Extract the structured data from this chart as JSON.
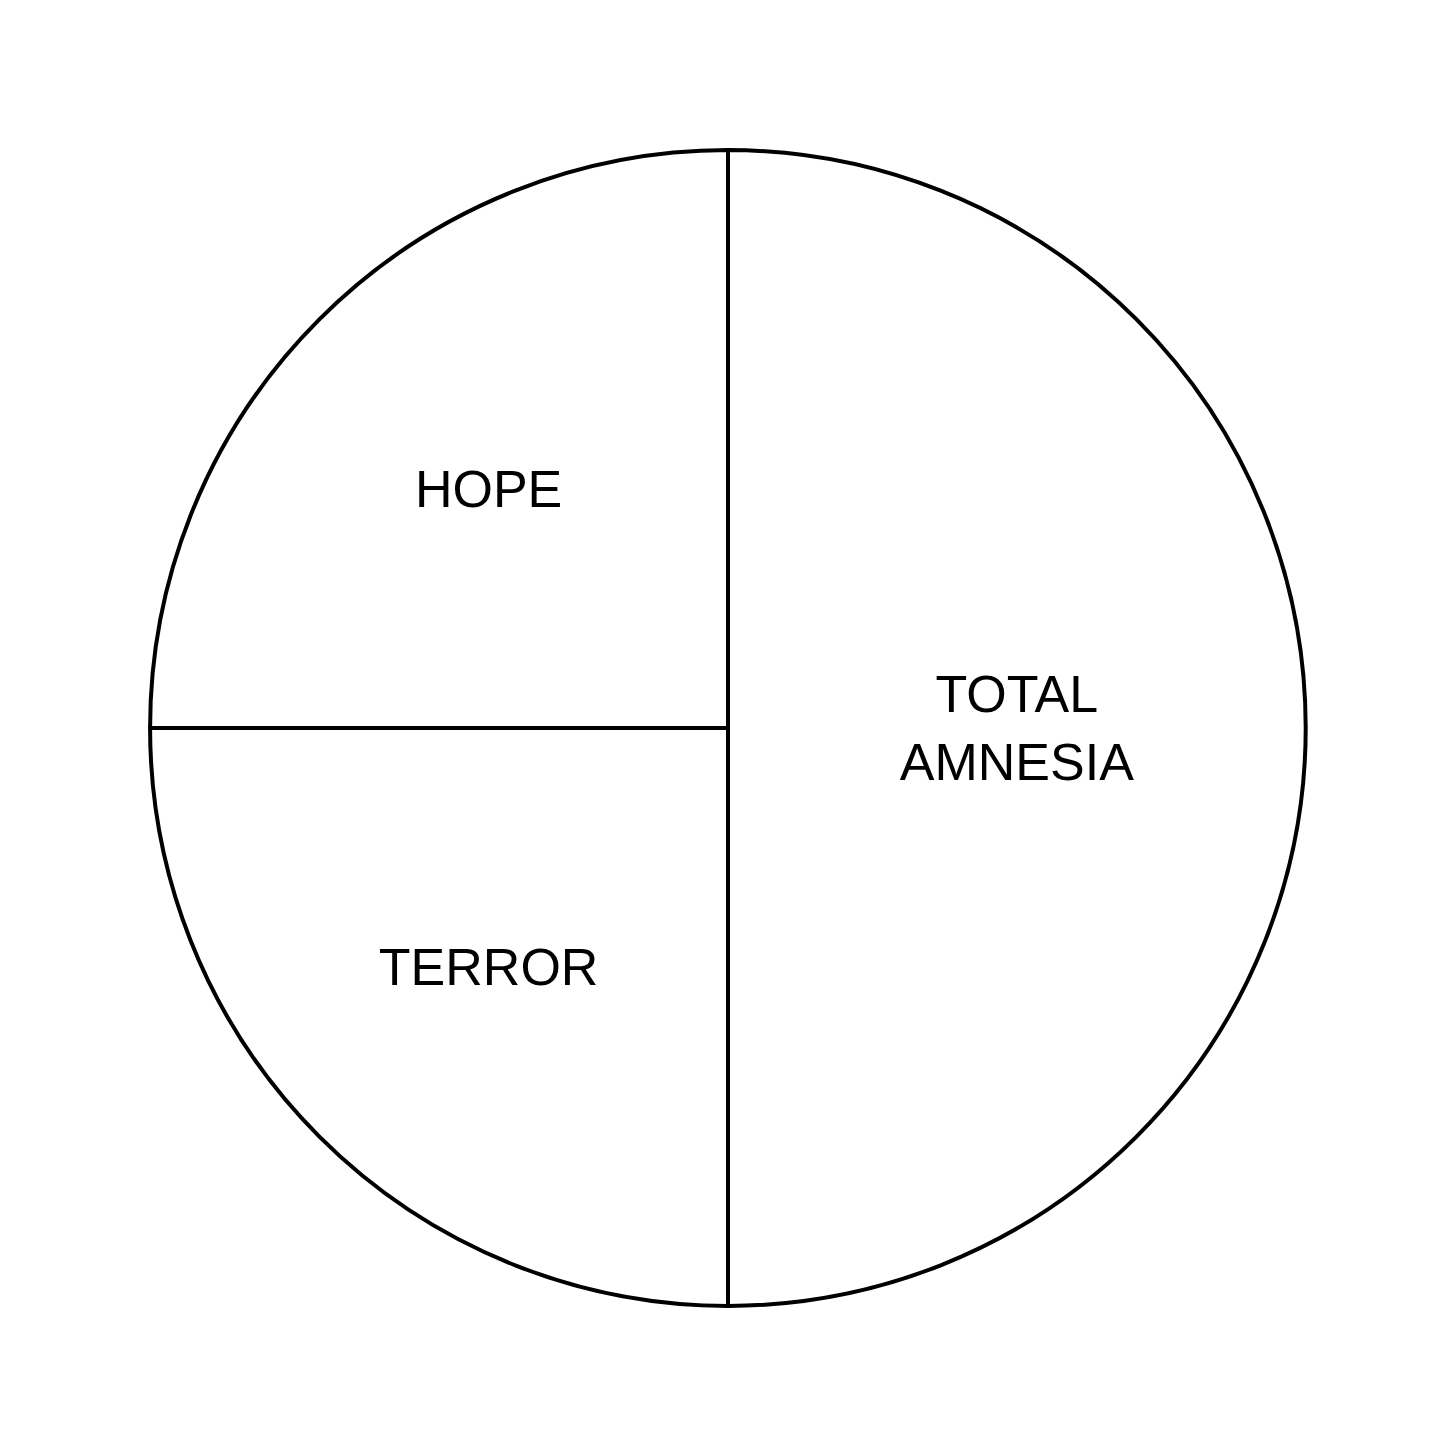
{
  "chart_data": {
    "type": "pie",
    "categories": [
      "TOTAL AMNESIA",
      "TERROR",
      "HOPE"
    ],
    "values": [
      50,
      25,
      25
    ],
    "colors": [
      "#ffffff",
      "#ffffff",
      "#ffffff"
    ]
  }
}
